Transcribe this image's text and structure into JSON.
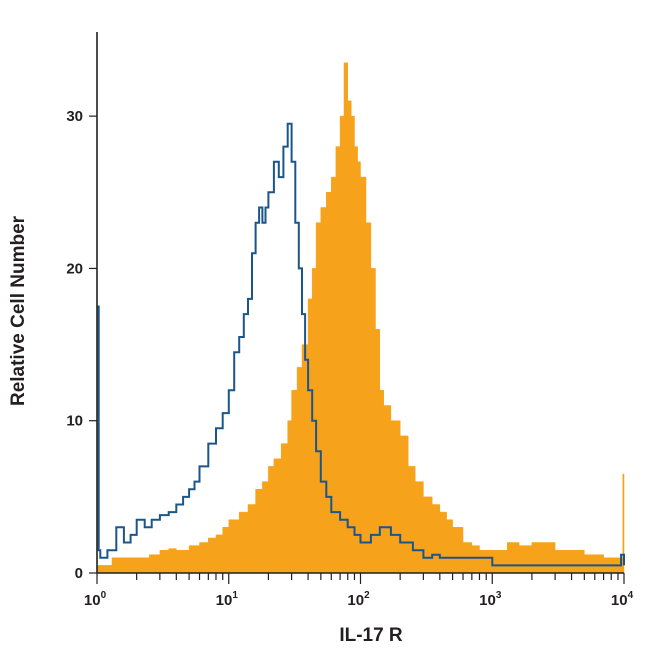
{
  "chart_data": {
    "type": "area",
    "title": "",
    "xlabel": "IL-17 R",
    "ylabel": "Relative Cell Number",
    "xscale": "log",
    "xlim": [
      1,
      10000
    ],
    "ylim": [
      0,
      35
    ],
    "grid": false,
    "legend": "none",
    "x_ticks": [
      {
        "value": 1,
        "base": "10",
        "exp": "0"
      },
      {
        "value": 10,
        "base": "10",
        "exp": "1"
      },
      {
        "value": 100,
        "base": "10",
        "exp": "2"
      },
      {
        "value": 1000,
        "base": "10",
        "exp": "3"
      },
      {
        "value": 10000,
        "base": "10",
        "exp": "4"
      }
    ],
    "y_ticks": [
      {
        "value": 0,
        "label": "0"
      },
      {
        "value": 10,
        "label": "10"
      },
      {
        "value": 20,
        "label": "20"
      },
      {
        "value": 30,
        "label": "30"
      }
    ],
    "series": [
      {
        "style": "filled",
        "color": "#f7a21b",
        "x": [
          1.0,
          1.3,
          1.6,
          2.0,
          2.5,
          3.0,
          3.5,
          4.0,
          5.0,
          6.0,
          7.0,
          8.0,
          9.0,
          10,
          12,
          14,
          16,
          18,
          20,
          22,
          25,
          28,
          30,
          33,
          36,
          40,
          43,
          46,
          50,
          55,
          60,
          65,
          70,
          75,
          80,
          85,
          90,
          95,
          100,
          110,
          120,
          130,
          140,
          150,
          170,
          200,
          230,
          260,
          300,
          350,
          400,
          450,
          500,
          600,
          700,
          800,
          1000,
          1300,
          1600,
          2000,
          2500,
          3000,
          4000,
          5000,
          6000,
          7000,
          8000,
          9000,
          9800,
          10000
        ],
        "values": [
          0.5,
          1.0,
          1.0,
          1.0,
          1.2,
          1.5,
          1.6,
          1.5,
          1.8,
          2.0,
          2.3,
          2.5,
          3.0,
          3.5,
          4.0,
          4.5,
          5.5,
          6.0,
          7.0,
          7.5,
          8.5,
          10.0,
          12.0,
          13.5,
          15.0,
          18.0,
          20.0,
          23.0,
          24.0,
          25.0,
          26.0,
          28.0,
          30.0,
          33.5,
          31.0,
          30.0,
          28.0,
          27.0,
          26.0,
          23.0,
          20.0,
          16.0,
          12.0,
          11.0,
          10.0,
          9.0,
          7.0,
          6.0,
          5.0,
          4.5,
          4.0,
          3.5,
          3.0,
          2.0,
          1.8,
          1.5,
          1.5,
          2.0,
          1.8,
          2.0,
          2.0,
          1.5,
          1.5,
          1.2,
          1.2,
          1.0,
          1.0,
          1.0,
          6.5,
          0.5
        ]
      },
      {
        "style": "outline",
        "color": "#1c5589",
        "x": [
          1.0,
          1.03,
          1.06,
          1.2,
          1.4,
          1.6,
          1.8,
          2.0,
          2.3,
          2.6,
          3.0,
          3.5,
          4.0,
          4.5,
          5.0,
          5.5,
          6.0,
          7.0,
          8.0,
          9.0,
          10,
          11,
          12,
          13,
          14,
          15,
          16,
          17,
          18,
          19,
          20,
          22,
          24,
          26,
          28,
          30,
          32,
          34,
          36,
          38,
          40,
          43,
          46,
          50,
          55,
          60,
          70,
          80,
          90,
          100,
          120,
          140,
          170,
          200,
          250,
          300,
          350,
          400,
          500,
          600,
          700,
          800,
          1000,
          1300,
          1600,
          2000,
          3000,
          5000,
          7000,
          9500,
          10000
        ],
        "values": [
          17.5,
          1.5,
          1.0,
          1.5,
          3.0,
          2.0,
          2.5,
          3.5,
          3.0,
          3.5,
          3.8,
          4.0,
          4.5,
          5.0,
          5.5,
          6.0,
          7.0,
          8.5,
          9.5,
          10.5,
          12.0,
          14.5,
          15.5,
          17.0,
          18.0,
          21.0,
          23.0,
          24.0,
          23.0,
          24.0,
          25.0,
          27.0,
          26.0,
          28.0,
          29.5,
          27.0,
          23.0,
          20.0,
          17.0,
          14.0,
          12.0,
          10.0,
          8.0,
          6.0,
          5.0,
          4.0,
          3.5,
          3.0,
          2.5,
          2.0,
          2.5,
          3.0,
          2.5,
          2.0,
          1.5,
          1.0,
          1.2,
          1.0,
          1.0,
          1.0,
          1.0,
          1.0,
          0.5,
          0.5,
          0.5,
          0.5,
          0.5,
          0.5,
          0.5,
          1.2,
          0.5
        ]
      }
    ]
  }
}
